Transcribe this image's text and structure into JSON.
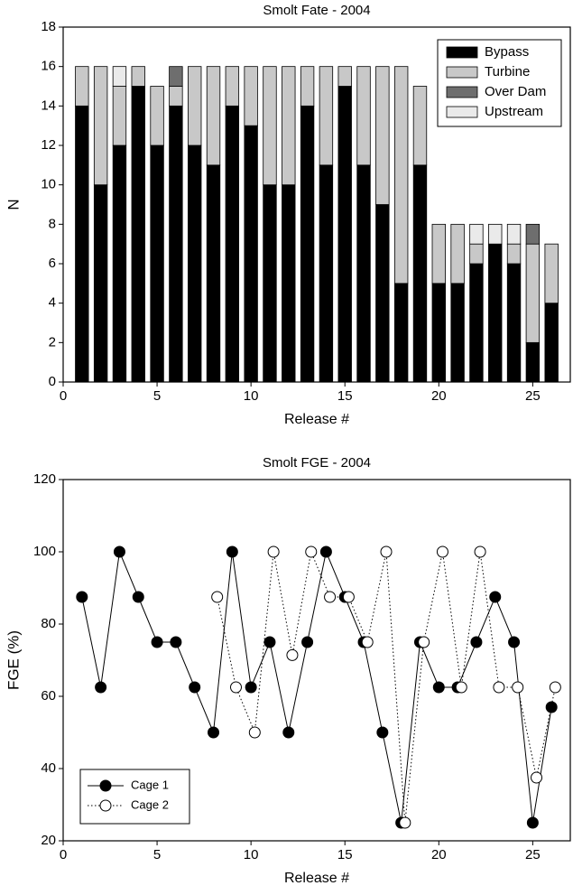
{
  "chart_data": [
    {
      "type": "stacked-bar",
      "title": "Smolt Fate - 2004",
      "xlabel": "Release #",
      "ylabel": "N",
      "x": [
        1,
        2,
        3,
        4,
        5,
        6,
        7,
        8,
        9,
        10,
        11,
        12,
        13,
        14,
        15,
        16,
        17,
        18,
        19,
        20,
        21,
        22,
        23,
        24,
        25,
        26
      ],
      "series": [
        {
          "name": "Bypass",
          "color": "#000000",
          "values": [
            14,
            10,
            12,
            15,
            12,
            14,
            12,
            11,
            14,
            13,
            10,
            10,
            14,
            11,
            15,
            11,
            9,
            5,
            11,
            5,
            5,
            6,
            7,
            6,
            2,
            4
          ]
        },
        {
          "name": "Turbine",
          "color": "#c8c8c8",
          "values": [
            2,
            6,
            3,
            1,
            3,
            1,
            4,
            5,
            2,
            3,
            6,
            6,
            2,
            5,
            1,
            5,
            7,
            11,
            4,
            3,
            3,
            1,
            0,
            1,
            5,
            3
          ]
        },
        {
          "name": "Over Dam",
          "color": "#6e6e6e",
          "values": [
            0,
            0,
            0,
            0,
            0,
            1,
            0,
            0,
            0,
            0,
            0,
            0,
            0,
            0,
            0,
            0,
            0,
            0,
            0,
            0,
            0,
            0,
            0,
            0,
            1,
            0
          ]
        },
        {
          "name": "Upstream",
          "color": "#eaeaea",
          "values": [
            0,
            0,
            1,
            0,
            0,
            0,
            0,
            0,
            0,
            0,
            0,
            0,
            0,
            0,
            0,
            0,
            0,
            0,
            0,
            0,
            0,
            1,
            1,
            1,
            0,
            0
          ]
        }
      ],
      "xlim": [
        0,
        27
      ],
      "xticks": [
        0,
        5,
        10,
        15,
        20,
        25
      ],
      "ylim": [
        0,
        18
      ],
      "yticks": [
        0,
        2,
        4,
        6,
        8,
        10,
        12,
        14,
        16,
        18
      ],
      "legend": "upper right"
    },
    {
      "type": "line",
      "title": "Smolt FGE - 2004",
      "xlabel": "Release #",
      "ylabel": "FGE (%)",
      "series": [
        {
          "name": "Cage 1",
          "color": "#000000",
          "fill": "#000000",
          "linestyle": "solid",
          "x": [
            1,
            2,
            3,
            4,
            5,
            6,
            7,
            8,
            9,
            10,
            11,
            12,
            13,
            14,
            15,
            16,
            17,
            18,
            19,
            20,
            21,
            22,
            23,
            24,
            25,
            26
          ],
          "values": [
            87.5,
            62.5,
            100,
            87.5,
            75,
            75,
            62.5,
            50,
            100,
            62.5,
            75,
            50,
            75,
            100,
            87.5,
            75,
            50,
            25,
            75,
            62.5,
            62.5,
            75,
            87.5,
            75,
            25,
            57
          ]
        },
        {
          "name": "Cage 2",
          "color": "#000000",
          "fill": "#ffffff",
          "linestyle": "dotted",
          "x": [
            8.2,
            9.2,
            10.2,
            11.2,
            12.2,
            13.2,
            14.2,
            15.2,
            16.2,
            17.2,
            18.2,
            19.2,
            20.2,
            21.2,
            22.2,
            23.2,
            24.2,
            25.2,
            26.2
          ],
          "values": [
            87.5,
            62.5,
            50,
            100,
            71.4,
            100,
            87.5,
            87.5,
            75,
            100,
            25,
            75,
            100,
            62.5,
            100,
            62.5,
            62.5,
            37.5,
            62.5
          ]
        }
      ],
      "xlim": [
        0,
        27
      ],
      "xticks": [
        0,
        5,
        10,
        15,
        20,
        25
      ],
      "ylim": [
        20,
        120
      ],
      "yticks": [
        20,
        40,
        60,
        80,
        100,
        120
      ],
      "legend": "lower left"
    }
  ]
}
